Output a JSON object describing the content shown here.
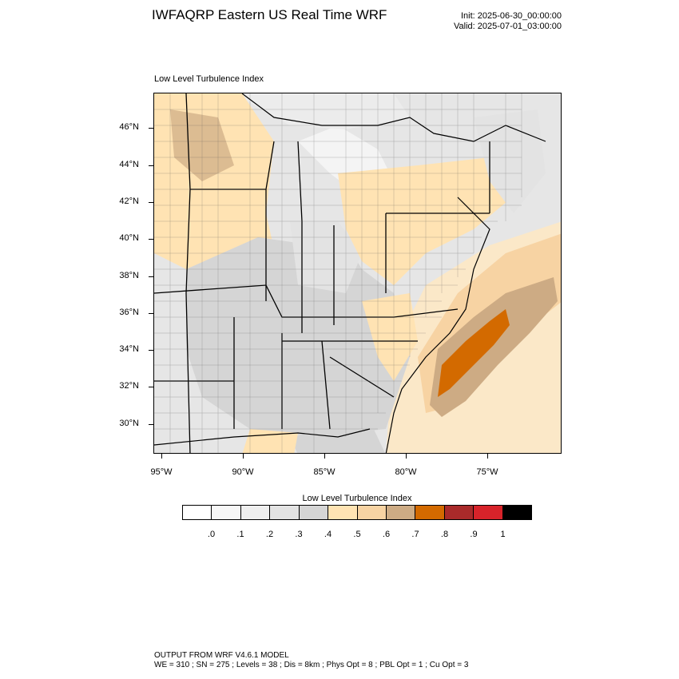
{
  "header": {
    "title": "IWFAQRP Eastern US Real Time WRF",
    "init": "Init: 2025-06-30_00:00:00",
    "valid": "Valid: 2025-07-01_03:00:00"
  },
  "map": {
    "subtitle": "Low Level Turbulence Index",
    "lat_labels": [
      "46°N",
      "44°N",
      "42°N",
      "40°N",
      "38°N",
      "36°N",
      "34°N",
      "32°N",
      "30°N"
    ],
    "lon_labels": [
      "95°W",
      "90°W",
      "85°W",
      "80°W",
      "75°W"
    ]
  },
  "colorbar": {
    "title": "Low Level Turbulence Index",
    "colors": [
      "#ffffff",
      "#f7f7f7",
      "#efefef",
      "#e3e3e3",
      "#d5d5d5",
      "#ffe3b3",
      "#f7d3a3",
      "#cdab84",
      "#d36a00",
      "#a92a2a",
      "#d7232a",
      "#000000"
    ],
    "labels": [
      ".0",
      ".1",
      ".2",
      ".3",
      ".4",
      ".5",
      ".6",
      ".7",
      ".8",
      ".9",
      "1"
    ]
  },
  "footer": {
    "line1": "OUTPUT FROM WRF V4.6.1 MODEL",
    "line2": "WE = 310 ; SN = 275 ; Levels = 38 ; Dis = 8km ; Phys Opt = 8 ; PBL Opt = 1 ; Cu Opt = 3"
  }
}
